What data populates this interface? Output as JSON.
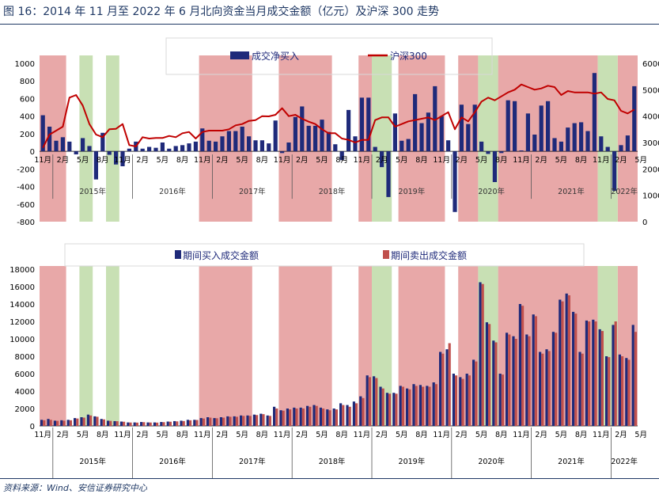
{
  "figure_title": "图 16：2014 年 11 月至 2022 年 6 月北向资金当月成交金额（亿元）及沪深 300 走势",
  "source": "资料来源：Wind、安信证券研究中心",
  "colors": {
    "navy": "#1f2a7a",
    "red_line": "#c00000",
    "sell_bar": "#c0504d",
    "red_shade": "#e8a8a8",
    "green_shade": "#c8e0b4",
    "title_text": "#1f3864"
  },
  "chart_data": [
    {
      "type": "bar+line",
      "legend_position": "top-center",
      "series": [
        {
          "name": "成交净买入",
          "axis": "left",
          "values": [
            410,
            280,
            120,
            160,
            110,
            -35,
            150,
            60,
            -320,
            210,
            -40,
            -150,
            -170,
            30,
            110,
            30,
            50,
            40,
            100,
            30,
            60,
            70,
            90,
            110,
            260,
            120,
            110,
            170,
            230,
            230,
            280,
            170,
            125,
            125,
            90,
            350,
            -20,
            100,
            390,
            510,
            290,
            290,
            360,
            220,
            80,
            -100,
            470,
            170,
            610,
            610,
            50,
            -180,
            -520,
            430,
            120,
            140,
            650,
            320,
            440,
            740,
            400,
            125,
            -690,
            530,
            310,
            530,
            110,
            -30,
            -350,
            -20,
            580,
            570,
            10,
            430,
            190,
            520,
            570,
            150,
            110,
            270,
            320,
            330,
            230,
            890,
            170,
            50,
            -450,
            70,
            180,
            740
          ]
        },
        {
          "name": "沪深300",
          "axis": "right",
          "values": [
            2800,
            3300,
            3450,
            3600,
            4700,
            4800,
            4400,
            3700,
            3300,
            3200,
            3500,
            3520,
            3700,
            2900,
            2850,
            3200,
            3150,
            3170,
            3170,
            3250,
            3200,
            3350,
            3400,
            3150,
            3400,
            3450,
            3450,
            3450,
            3500,
            3650,
            3700,
            3820,
            3850,
            4000,
            3990,
            4050,
            4300,
            4000,
            4050,
            3900,
            3790,
            3700,
            3500,
            3350,
            3350,
            3150,
            3100,
            3000,
            3100,
            3100,
            3850,
            3950,
            3950,
            3600,
            3700,
            3800,
            3850,
            3900,
            3950,
            3850,
            4000,
            4150,
            3500,
            3950,
            3800,
            4150,
            4550,
            4700,
            4600,
            4750,
            4900,
            5000,
            5200,
            5100,
            5000,
            5050,
            5150,
            5100,
            4800,
            4950,
            4900,
            4900,
            4900,
            4850,
            4900,
            4650,
            4600,
            4200,
            4100,
            4250
          ]
        }
      ],
      "left_axis": {
        "ylim": [
          -800,
          1000
        ],
        "ticks": [
          "1000",
          "800",
          "600",
          "400",
          "200",
          "0",
          "-200",
          "-400",
          "-600",
          "-800"
        ]
      },
      "right_axis": {
        "ylim": [
          0,
          6000
        ],
        "ticks": [
          "6000",
          "5000",
          "4000",
          "3000",
          "2000",
          "1000",
          "0"
        ]
      }
    },
    {
      "type": "bar",
      "legend_position": "top-center",
      "series": [
        {
          "name": "期间买入成交金额",
          "values": [
            700,
            800,
            600,
            650,
            700,
            900,
            1000,
            1300,
            1100,
            800,
            600,
            550,
            500,
            400,
            400,
            450,
            400,
            400,
            450,
            500,
            550,
            600,
            700,
            700,
            900,
            1000,
            900,
            1000,
            1100,
            1100,
            1200,
            1200,
            1300,
            1400,
            1200,
            2200,
            1800,
            2000,
            2100,
            2100,
            2300,
            2400,
            2100,
            1900,
            2000,
            2600,
            2400,
            2800,
            3400,
            5800,
            5700,
            4500,
            3800,
            3800,
            4600,
            4300,
            4800,
            4700,
            4600,
            5000,
            8500,
            8800,
            6000,
            5600,
            6000,
            7600,
            16500,
            11900,
            9800,
            6000,
            10700,
            10300,
            14000,
            10500,
            12800,
            8500,
            8800,
            10800,
            14500,
            15200,
            13100,
            8500,
            12100,
            12200,
            11100,
            8000,
            11600,
            8200,
            7800,
            11600
          ]
        },
        {
          "name": "期间卖出成交金额",
          "values": [
            650,
            700,
            580,
            600,
            650,
            850,
            950,
            1200,
            1050,
            750,
            580,
            540,
            480,
            390,
            380,
            430,
            390,
            380,
            430,
            480,
            520,
            560,
            650,
            680,
            850,
            950,
            880,
            950,
            1050,
            1050,
            1150,
            1150,
            1250,
            1350,
            1150,
            2000,
            1750,
            1900,
            2000,
            2000,
            2200,
            2300,
            2000,
            1800,
            1900,
            2400,
            2200,
            2600,
            3200,
            5600,
            5500,
            4300,
            3700,
            3700,
            4500,
            4200,
            4600,
            4500,
            4500,
            4800,
            8300,
            9500,
            5800,
            5400,
            5800,
            7400,
            16300,
            11700,
            9600,
            5900,
            10500,
            10000,
            13800,
            10300,
            12600,
            8300,
            8600,
            10700,
            14300,
            15000,
            12900,
            8300,
            12000,
            12000,
            10900,
            7900,
            12000,
            8000,
            7600,
            10800
          ]
        }
      ],
      "ylim": [
        0,
        18000
      ],
      "y_ticks": [
        "18000",
        "16000",
        "14000",
        "12000",
        "10000",
        "8000",
        "6000",
        "4000",
        "2000",
        "0"
      ]
    }
  ],
  "x_axis": {
    "month_labels": [
      "11月",
      "2月",
      "5月",
      "8月",
      "11月",
      "2月",
      "5月",
      "8月",
      "11月",
      "2月",
      "5月",
      "8月",
      "11月",
      "2月",
      "5月",
      "8月",
      "11月",
      "2月",
      "5月",
      "8月",
      "11月",
      "2月",
      "5月",
      "8月",
      "11月",
      "2月",
      "5月",
      "8月",
      "11月",
      "2月",
      "5月"
    ],
    "years": [
      "2015年",
      "2016年",
      "2017年",
      "2018年",
      "2019年",
      "2020年",
      "2021年",
      "2022年"
    ]
  }
}
